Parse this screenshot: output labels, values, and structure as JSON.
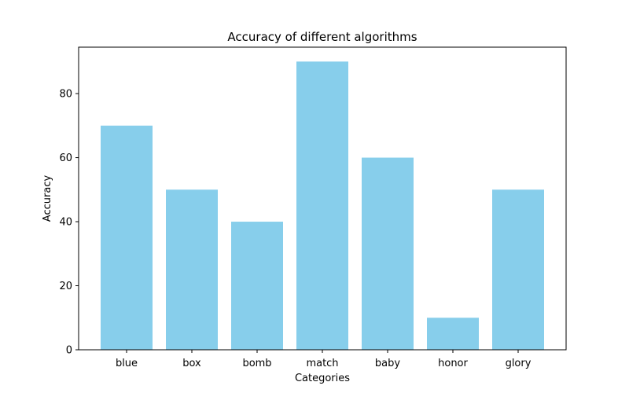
{
  "chart_data": {
    "type": "bar",
    "title": "Accuracy of different algorithms",
    "xlabel": "Categories",
    "ylabel": "Accuracy",
    "categories": [
      "blue",
      "box",
      "bomb",
      "match",
      "baby",
      "honor",
      "glory"
    ],
    "values": [
      70,
      50,
      40,
      90,
      60,
      10,
      50
    ],
    "ylim": [
      0,
      94.5
    ],
    "yticks": [
      "0",
      "20",
      "40",
      "60",
      "80"
    ],
    "grid": false,
    "bar_color": "#87ceeb"
  }
}
